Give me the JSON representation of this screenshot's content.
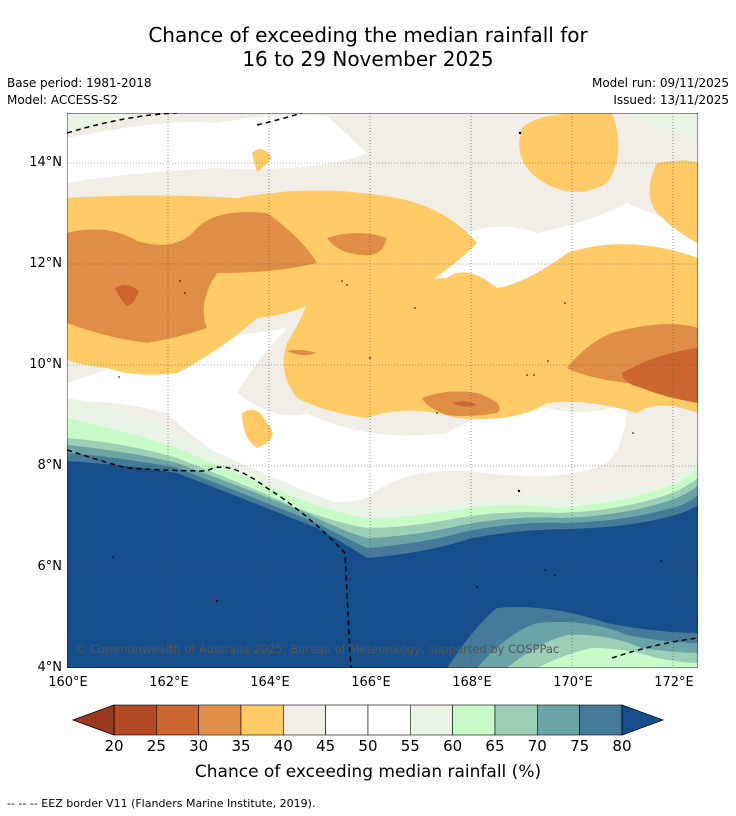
{
  "title": {
    "line1": "Chance of exceeding the median rainfall for",
    "line2": "16 to 29 November 2025"
  },
  "meta": {
    "base_period": "Base period: 1981-2018",
    "model": "Model: ACCESS-S2",
    "model_run": "Model run: 09/11/2025",
    "issued": "Issued: 13/11/2025"
  },
  "map": {
    "lat_labels": [
      "14°N",
      "12°N",
      "10°N",
      "8°N",
      "6°N",
      "4°N"
    ],
    "lon_labels": [
      "160°E",
      "162°E",
      "164°E",
      "166°E",
      "168°E",
      "170°E",
      "172°E"
    ],
    "copyright": "© Commonwealth of Australia 2025, Bureau of Meteorology, supported by COSPPac",
    "colors": {
      "c20_25": "#b34a25",
      "c25_30": "#cc6530",
      "c30_35": "#e08e45",
      "c35_40": "#fecb67",
      "c40_45": "#f1ede7",
      "c45_55": "#ffffff",
      "c55_60": "#e9f4e6",
      "c60_65": "#c9fbc9",
      "c65_70": "#9ccfb5",
      "c70_75": "#6ba4a6",
      "c75_80": "#457a98",
      "c80": "#164f8c"
    }
  },
  "colorbar": {
    "title": "Chance of exceeding median rainfall (%)",
    "ticks": [
      "20",
      "25",
      "30",
      "35",
      "40",
      "45",
      "50",
      "55",
      "60",
      "65",
      "70",
      "75",
      "80"
    ],
    "colors": [
      "#b34a25",
      "#cc6530",
      "#e08e45",
      "#fecb67",
      "#f1ede7",
      "#ffffff",
      "#ffffff",
      "#e9f4e6",
      "#c9fbc9",
      "#9ccfb5",
      "#6ba4a6",
      "#457a98"
    ],
    "under_color": "#9c3a20",
    "over_color": "#164f8c"
  },
  "legend": {
    "eez": "--  --  -- EEZ border V11 (Flanders Marine Institute, 2019)."
  }
}
